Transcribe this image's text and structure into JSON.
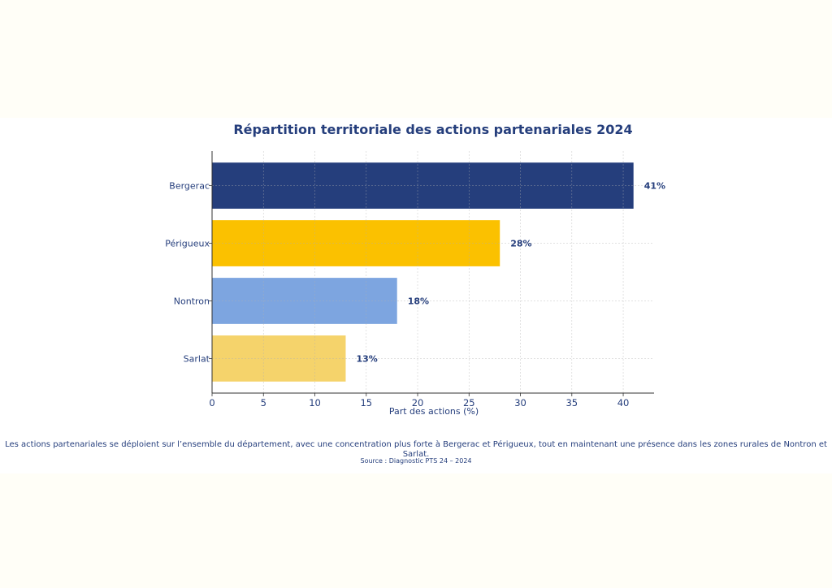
{
  "chart_data": {
    "type": "bar",
    "orientation": "horizontal",
    "title": "Répartition territoriale des actions partenariales 2024",
    "categories": [
      "Bergerac",
      "Périgueux",
      "Nontron",
      "Sarlat"
    ],
    "values": [
      41,
      28,
      18,
      13
    ],
    "data_labels": [
      "41%",
      "28%",
      "18%",
      "13%"
    ],
    "colors": [
      "#253E7C",
      "#FBC100",
      "#7DA5E0",
      "#F5D36B"
    ],
    "xlabel": "Part des actions (%)",
    "ylabel": "",
    "xlim": [
      0,
      43
    ],
    "xticks": [
      0,
      5,
      10,
      15,
      20,
      25,
      30,
      35,
      40
    ],
    "grid": true
  },
  "caption": "Les actions partenariales se déploient sur l’ensemble du département, avec une concentration plus forte à Bergerac et Périgueux, tout en maintenant une présence dans les zones rurales de Nontron et Sarlat.",
  "source": "Source : Diagnostic PTS 24 – 2024"
}
